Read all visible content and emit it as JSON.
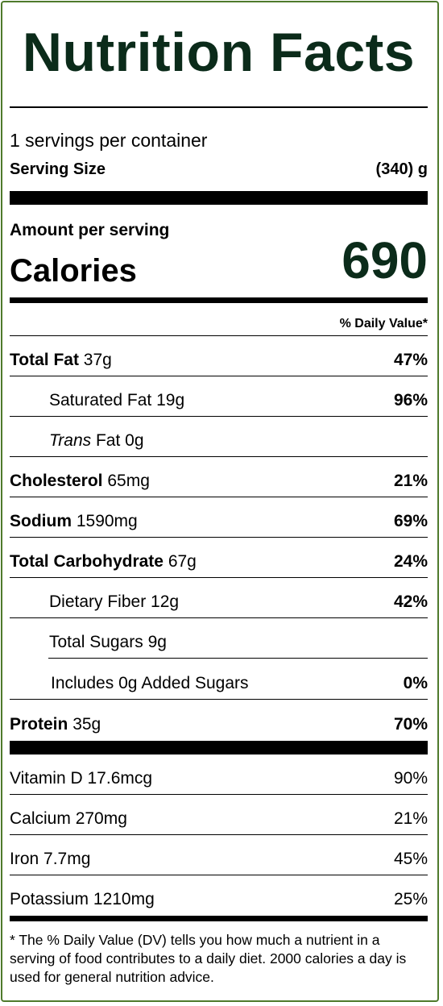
{
  "title": "Nutrition Facts",
  "servings_per_container": "1 servings per container",
  "serving_size": {
    "label": "Serving Size",
    "value": "(340) g"
  },
  "amount_per_serving": "Amount per serving",
  "calories": {
    "label": "Calories",
    "value": "690"
  },
  "daily_value_header": "% Daily Value*",
  "nutrients": [
    {
      "name": "Total Fat",
      "amount": "37g",
      "dv": "47%"
    },
    {
      "name": "Saturated Fat",
      "amount": "19g",
      "dv": "96%"
    },
    {
      "name_italic": "Trans",
      "name": "Fat",
      "amount": "0g",
      "dv": ""
    },
    {
      "name": "Cholesterol",
      "amount": "65mg",
      "dv": "21%"
    },
    {
      "name": "Sodium",
      "amount": "1590mg",
      "dv": "69%"
    },
    {
      "name": "Total Carbohydrate",
      "amount": "67g",
      "dv": "24%"
    },
    {
      "name": "Dietary Fiber",
      "amount": "12g",
      "dv": "42%"
    },
    {
      "name": "Total Sugars",
      "amount": "9g",
      "dv": ""
    },
    {
      "name": "Includes",
      "amount": "0g",
      "suffix": "Added Sugars",
      "dv": "0%"
    },
    {
      "name": "Protein",
      "amount": "35g",
      "dv": "70%"
    }
  ],
  "vitamins": [
    {
      "name": "Vitamin D",
      "amount": "17.6mcg",
      "dv": "90%"
    },
    {
      "name": "Calcium",
      "amount": "270mg",
      "dv": "21%"
    },
    {
      "name": "Iron",
      "amount": "7.7mg",
      "dv": "45%"
    },
    {
      "name": "Potassium",
      "amount": "1210mg",
      "dv": "25%"
    }
  ],
  "footnote": "* The % Daily Value (DV) tells you how much a nutrient in a serving of food contributes to a daily diet. 2000 calories a day is used for general nutrition advice.",
  "colors": {
    "border": "#4f7a2c",
    "title": "#0b2b1a"
  }
}
